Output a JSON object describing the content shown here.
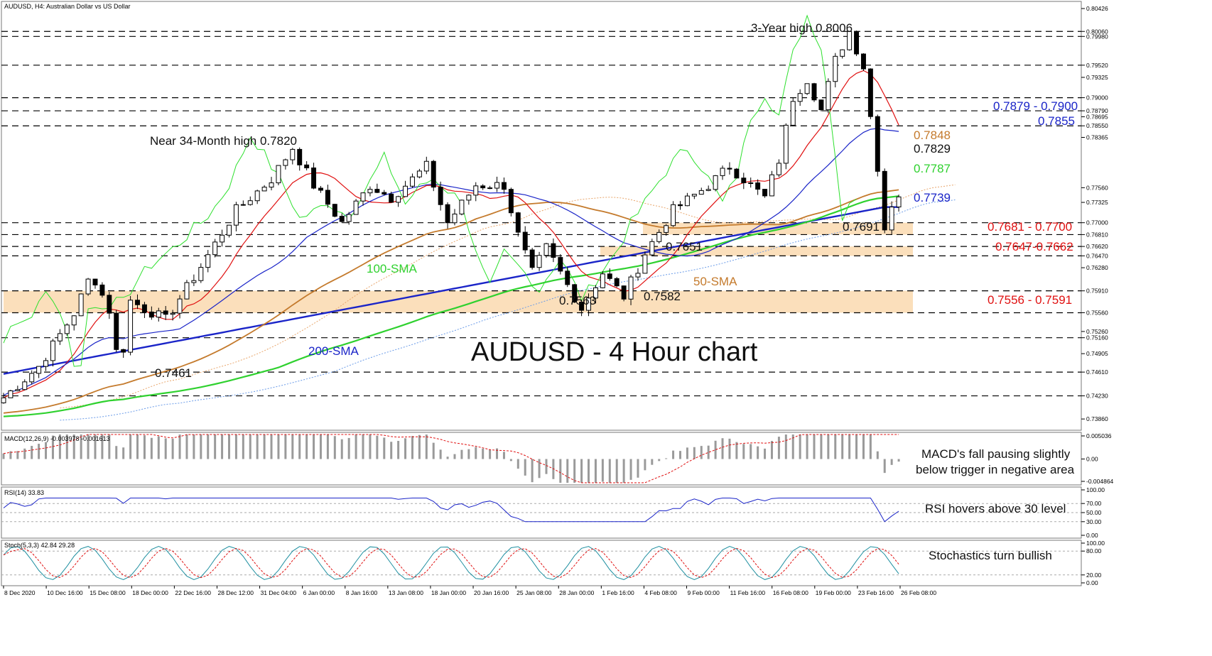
{
  "header": {
    "symbol_info": "AUDUSD, H4:  Australian Dollar vs US Dollar"
  },
  "indicators": {
    "macd_label": "MACD(12,26,9) -0.003978 -0.001613",
    "rsi_label": "RSI(14) 33.83",
    "stoch_label": "Stoch(5,3,3) 42.84 29.28"
  },
  "annotations": {
    "chart_title": "AUDUSD - 4 Hour chart",
    "three_year_high": "3-Year high 0.8006",
    "near_34m_high": "Near 34-Month high 0.7820",
    "low_7461": "0.7461",
    "low_7563": "0.7563",
    "low_7582": "0.7582",
    "level_7651": "0.7651",
    "level_7691": "0.7691",
    "sma100": "100-SMA",
    "sma200": "200-SMA",
    "sma50": "50-SMA",
    "level_7879_7900": "0.7879 - 0.7900",
    "level_7855": "0.7855",
    "level_7848": "0.7848",
    "level_7829": "0.7829",
    "level_7787": "0.7787",
    "level_7739": "0.7739",
    "zone_7681_7700": "0.7681 - 0.7700",
    "zone_7647_7662": "0.7647-0.7662",
    "zone_7556_7591": "0.7556 - 0.7591",
    "macd_note_1": "MACD's fall pausing slightly",
    "macd_note_2": "below trigger in negative area",
    "rsi_note": "RSI hovers above 30 level",
    "stoch_note": "Stochastics turn bullish"
  },
  "colors": {
    "sma50": "#c47a2c",
    "sma100": "#2fd12f",
    "sma200": "#1a24c8",
    "tenkan": "#e01010",
    "kijun": "#1a24c8",
    "chikou": "#2ee02e",
    "zone": "#fbdcb4",
    "red_text": "#e01010",
    "blue_text": "#1a24c8",
    "green_text": "#2fd12f",
    "orange_text": "#c47a2c"
  },
  "chart_data": {
    "type": "line",
    "title": "AUDUSD - 4 Hour chart",
    "x_tick_labels": [
      "8 Dec 2020",
      "10 Dec 16:00",
      "15 Dec 08:00",
      "18 Dec 00:00",
      "22 Dec 16:00",
      "28 Dec 12:00",
      "31 Dec 04:00",
      "6 Jan 00:00",
      "8 Jan 16:00",
      "13 Jan 08:00",
      "18 Jan 00:00",
      "20 Jan 16:00",
      "25 Jan 08:00",
      "28 Jan 00:00",
      "1 Feb 16:00",
      "4 Feb 08:00",
      "9 Feb 00:00",
      "11 Feb 16:00",
      "16 Feb 08:00",
      "19 Feb 00:00",
      "23 Feb 16:00",
      "26 Feb 08:00"
    ],
    "y_tick_labels": [
      "0.80426",
      "0.80060",
      "0.79980",
      "0.79520",
      "0.79325",
      "0.79000",
      "0.78790",
      "0.78695",
      "0.78550",
      "0.78365",
      "0.77560",
      "0.77325",
      "0.77000",
      "0.76810",
      "0.76620",
      "0.76470",
      "0.76280",
      "0.75910",
      "0.75560",
      "0.75260",
      "0.75160",
      "0.74905",
      "0.74610",
      "0.74230",
      "0.73860"
    ],
    "ylim": [
      0.7368,
      0.8054
    ],
    "price_keypoints": [
      {
        "x": 0,
        "y": 0.742
      },
      {
        "x": 5,
        "y": 0.747
      },
      {
        "x": 10,
        "y": 0.7555
      },
      {
        "x": 12.5,
        "y": 0.762
      },
      {
        "x": 15,
        "y": 0.756
      },
      {
        "x": 16.5,
        "y": 0.7461
      },
      {
        "x": 18,
        "y": 0.7575
      },
      {
        "x": 23,
        "y": 0.7545
      },
      {
        "x": 28,
        "y": 0.763
      },
      {
        "x": 33,
        "y": 0.772
      },
      {
        "x": 38,
        "y": 0.777
      },
      {
        "x": 41,
        "y": 0.782
      },
      {
        "x": 44,
        "y": 0.776
      },
      {
        "x": 48,
        "y": 0.77
      },
      {
        "x": 52,
        "y": 0.776
      },
      {
        "x": 55,
        "y": 0.774
      },
      {
        "x": 60,
        "y": 0.779
      },
      {
        "x": 63,
        "y": 0.77
      },
      {
        "x": 67,
        "y": 0.776
      },
      {
        "x": 71,
        "y": 0.776
      },
      {
        "x": 73,
        "y": 0.768
      },
      {
        "x": 75,
        "y": 0.762
      },
      {
        "x": 77,
        "y": 0.766
      },
      {
        "x": 80,
        "y": 0.76
      },
      {
        "x": 82,
        "y": 0.7563
      },
      {
        "x": 85,
        "y": 0.762
      },
      {
        "x": 88,
        "y": 0.7582
      },
      {
        "x": 91,
        "y": 0.7651
      },
      {
        "x": 95,
        "y": 0.772
      },
      {
        "x": 100,
        "y": 0.776
      },
      {
        "x": 103,
        "y": 0.779
      },
      {
        "x": 106,
        "y": 0.776
      },
      {
        "x": 108,
        "y": 0.774
      },
      {
        "x": 110,
        "y": 0.78
      },
      {
        "x": 112,
        "y": 0.79
      },
      {
        "x": 114,
        "y": 0.793
      },
      {
        "x": 116,
        "y": 0.788
      },
      {
        "x": 118,
        "y": 0.796
      },
      {
        "x": 120,
        "y": 0.8006
      },
      {
        "x": 122,
        "y": 0.795
      },
      {
        "x": 124,
        "y": 0.779
      },
      {
        "x": 125,
        "y": 0.7691
      },
      {
        "x": 126,
        "y": 0.773
      },
      {
        "x": 127,
        "y": 0.7745
      }
    ],
    "series_names": [
      "50-SMA",
      "100-SMA",
      "200-SMA"
    ],
    "horizontal_levels": [
      0.8006,
      0.7998,
      0.7952,
      0.79,
      0.7879,
      0.7855,
      0.77,
      0.7681,
      0.7662,
      0.7647,
      0.7591,
      0.7556,
      0.7516,
      0.7461,
      0.7423
    ],
    "zones": [
      {
        "label": "0.7681 - 0.7700",
        "low": 0.7681,
        "high": 0.77
      },
      {
        "label": "0.7647-0.7662",
        "low": 0.7647,
        "high": 0.7662
      },
      {
        "label": "0.7556 - 0.7591",
        "low": 0.7556,
        "high": 0.7591
      }
    ],
    "rsi_levels": [
      100,
      70,
      50,
      30,
      0
    ],
    "rsi_level_labels": [
      "100.00",
      "70.00",
      "50.00",
      "30.00",
      "0.00"
    ],
    "stoch_levels": [
      100,
      80,
      20,
      0
    ],
    "stoch_level_labels": [
      "100.00",
      "80.00",
      "20.00",
      "0.00"
    ],
    "macd_range_labels": [
      "0.005036",
      "0.00",
      "-0.004864"
    ]
  }
}
